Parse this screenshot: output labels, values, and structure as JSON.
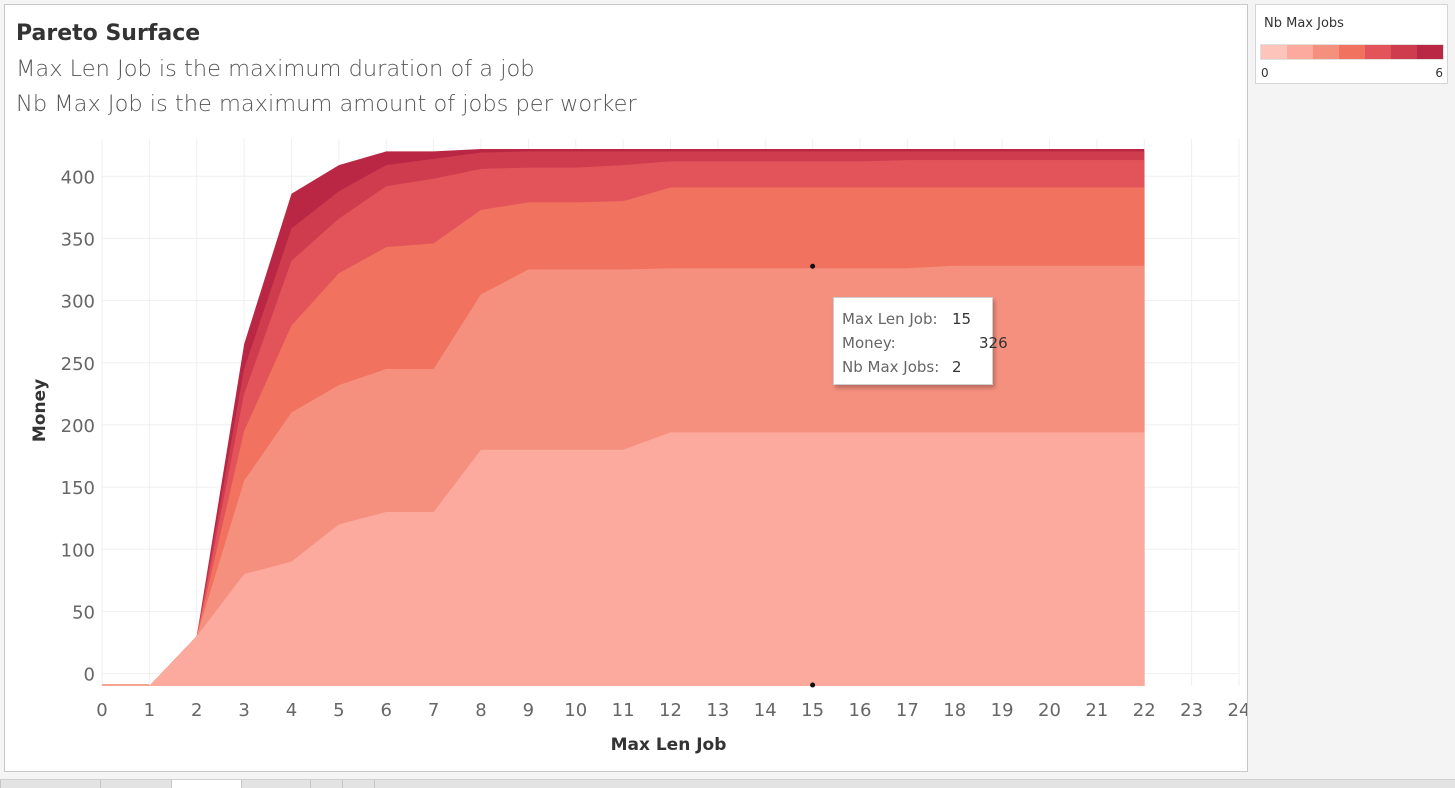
{
  "title": "Pareto Surface",
  "subtitle_1": "Max Len Job is the maximum duration of a job",
  "subtitle_2": "Nb Max Job is the maximum amount of jobs per worker",
  "legend": {
    "title": "Nb Max Jobs",
    "min": "0",
    "max": "6",
    "colors": [
      "#fcc4bb",
      "#fbaa9d",
      "#f6907e",
      "#f1735f",
      "#e2545a",
      "#cf3c4e",
      "#ba2745"
    ]
  },
  "tooltip": {
    "rows": [
      {
        "label": "Max Len Job:",
        "value": "15"
      },
      {
        "label": "Money:",
        "value": "326"
      },
      {
        "label": "Nb Max Jobs:",
        "value": "2"
      }
    ]
  },
  "chart_data": {
    "type": "area",
    "stacked": true,
    "xlabel": "Max Len Job",
    "ylabel": "Money",
    "x": [
      0,
      1,
      2,
      3,
      4,
      5,
      6,
      7,
      8,
      9,
      10,
      11,
      12,
      13,
      14,
      15,
      16,
      17,
      18,
      19,
      20,
      21,
      22
    ],
    "xlim": [
      0,
      24
    ],
    "ylim": [
      -10,
      430
    ],
    "xticks": [
      0,
      1,
      2,
      3,
      4,
      5,
      6,
      7,
      8,
      9,
      10,
      11,
      12,
      13,
      14,
      15,
      16,
      17,
      18,
      19,
      20,
      21,
      22,
      23,
      24
    ],
    "yticks": [
      0,
      50,
      100,
      150,
      200,
      250,
      300,
      350,
      400
    ],
    "grid": true,
    "highlight": {
      "x": 15,
      "y": 326
    },
    "series": [
      {
        "colorIndex": 1,
        "values": [
          -10,
          -10,
          30,
          80,
          90,
          120,
          130,
          130,
          180,
          180,
          180,
          180,
          194,
          194,
          194,
          194,
          194,
          194,
          194,
          194,
          194,
          194,
          194
        ]
      },
      {
        "colorIndex": 2,
        "values": [
          -10,
          -10,
          30,
          155,
          210,
          232,
          245,
          245,
          305,
          325,
          325,
          325,
          326,
          326,
          326,
          326,
          326,
          326,
          328,
          328,
          328,
          328,
          328
        ]
      },
      {
        "colorIndex": 3,
        "values": [
          -10,
          -10,
          30,
          195,
          280,
          322,
          343,
          346,
          373,
          379,
          379,
          380,
          391,
          391,
          391,
          391,
          391,
          391,
          391,
          391,
          391,
          391,
          391
        ]
      },
      {
        "colorIndex": 4,
        "values": [
          -10,
          -10,
          30,
          225,
          332,
          366,
          392,
          398,
          406,
          407,
          407,
          409,
          412,
          412,
          412,
          412,
          412,
          413,
          413,
          413,
          413,
          413,
          413
        ]
      },
      {
        "colorIndex": 5,
        "values": [
          -10,
          -10,
          30,
          245,
          358,
          388,
          409,
          414,
          419,
          420,
          420,
          420,
          420,
          420,
          420,
          420,
          420,
          420,
          420,
          420,
          420,
          420,
          420
        ]
      },
      {
        "colorIndex": 6,
        "values": [
          -10,
          -10,
          30,
          265,
          386,
          409,
          420,
          420,
          422,
          422,
          422,
          422,
          422,
          422,
          422,
          422,
          422,
          422,
          422,
          422,
          422,
          422,
          422
        ]
      }
    ]
  }
}
